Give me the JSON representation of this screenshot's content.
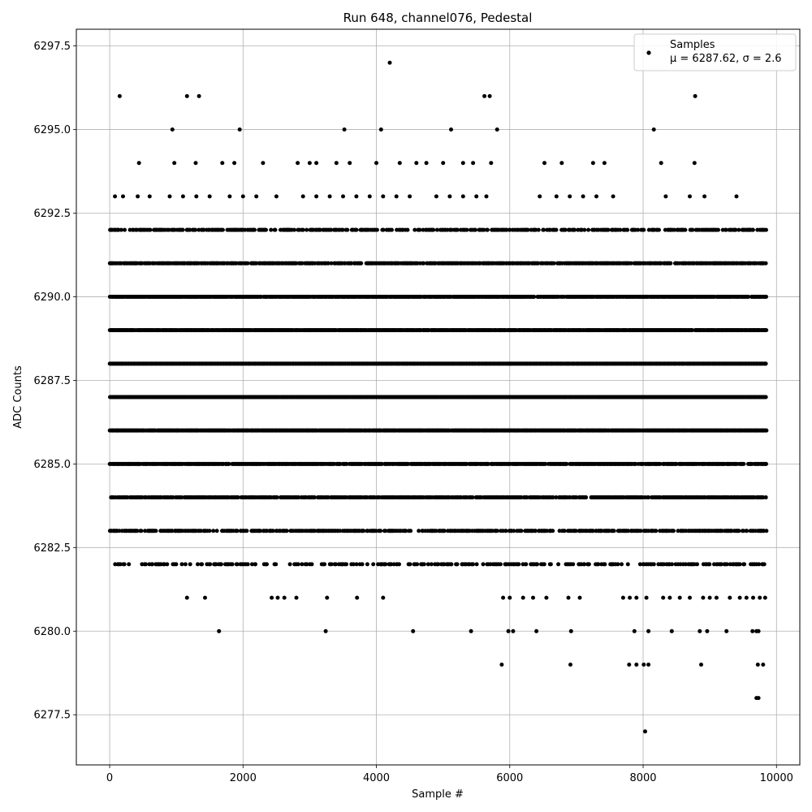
{
  "chart_data": {
    "type": "scatter",
    "title": "Run 648, channel076, Pedestal",
    "xlabel": "Sample #",
    "ylabel": "ADC Counts",
    "xlim": [
      -500,
      10350
    ],
    "ylim": [
      6276,
      6298
    ],
    "x_ticks": [
      0,
      2000,
      4000,
      6000,
      8000,
      10000
    ],
    "y_ticks": [
      6277.5,
      6280.0,
      6282.5,
      6285.0,
      6287.5,
      6290.0,
      6292.5,
      6295.0,
      6297.5
    ],
    "grid": true,
    "legend_position": "top-right",
    "marker_color": "#000000",
    "n_samples": 9850,
    "series": [
      {
        "name": "Samples",
        "label_line2": "μ = 6287.62, σ = 2.6",
        "band_levels": [
          6282,
          6283,
          6284,
          6285,
          6286,
          6287,
          6288,
          6289,
          6290,
          6291,
          6292
        ],
        "band_occupancy": [
          0.3,
          0.55,
          0.7,
          0.85,
          0.95,
          1.0,
          1.0,
          0.95,
          0.85,
          0.7,
          0.5
        ],
        "points": [
          [
            150,
            6296
          ],
          [
            1160,
            6296
          ],
          [
            1340,
            6296
          ],
          [
            4200,
            6297
          ],
          [
            5620,
            6296
          ],
          [
            5700,
            6296
          ],
          [
            8780,
            6296
          ],
          [
            940,
            6295
          ],
          [
            1950,
            6295
          ],
          [
            3520,
            6295
          ],
          [
            4070,
            6295
          ],
          [
            5120,
            6295
          ],
          [
            5810,
            6295
          ],
          [
            8160,
            6295
          ],
          [
            440,
            6294
          ],
          [
            970,
            6294
          ],
          [
            1290,
            6294
          ],
          [
            1690,
            6294
          ],
          [
            1870,
            6294
          ],
          [
            2300,
            6294
          ],
          [
            2820,
            6294
          ],
          [
            3000,
            6294
          ],
          [
            3100,
            6294
          ],
          [
            3400,
            6294
          ],
          [
            3600,
            6294
          ],
          [
            4000,
            6294
          ],
          [
            4350,
            6294
          ],
          [
            4600,
            6294
          ],
          [
            4750,
            6294
          ],
          [
            5000,
            6294
          ],
          [
            5300,
            6294
          ],
          [
            5450,
            6294
          ],
          [
            5720,
            6294
          ],
          [
            6520,
            6294
          ],
          [
            6780,
            6294
          ],
          [
            7250,
            6294
          ],
          [
            7420,
            6294
          ],
          [
            8270,
            6294
          ],
          [
            8770,
            6294
          ],
          [
            80,
            6293
          ],
          [
            200,
            6293
          ],
          [
            420,
            6293
          ],
          [
            600,
            6293
          ],
          [
            900,
            6293
          ],
          [
            1100,
            6293
          ],
          [
            1300,
            6293
          ],
          [
            1500,
            6293
          ],
          [
            1800,
            6293
          ],
          [
            2000,
            6293
          ],
          [
            2200,
            6293
          ],
          [
            2500,
            6293
          ],
          [
            2900,
            6293
          ],
          [
            3100,
            6293
          ],
          [
            3300,
            6293
          ],
          [
            3500,
            6293
          ],
          [
            3700,
            6293
          ],
          [
            3900,
            6293
          ],
          [
            4100,
            6293
          ],
          [
            4300,
            6293
          ],
          [
            4500,
            6293
          ],
          [
            4900,
            6293
          ],
          [
            5100,
            6293
          ],
          [
            5300,
            6293
          ],
          [
            5500,
            6293
          ],
          [
            5650,
            6293
          ],
          [
            6450,
            6293
          ],
          [
            6700,
            6293
          ],
          [
            6900,
            6293
          ],
          [
            7100,
            6293
          ],
          [
            7300,
            6293
          ],
          [
            7550,
            6293
          ],
          [
            8340,
            6293
          ],
          [
            8700,
            6293
          ],
          [
            8920,
            6293
          ],
          [
            9400,
            6293
          ],
          [
            1160,
            6281
          ],
          [
            1430,
            6281
          ],
          [
            2430,
            6281
          ],
          [
            2520,
            6281
          ],
          [
            2620,
            6281
          ],
          [
            2800,
            6281
          ],
          [
            3260,
            6281
          ],
          [
            3710,
            6281
          ],
          [
            4100,
            6281
          ],
          [
            5900,
            6281
          ],
          [
            6000,
            6281
          ],
          [
            6200,
            6281
          ],
          [
            6350,
            6281
          ],
          [
            6550,
            6281
          ],
          [
            6880,
            6281
          ],
          [
            7050,
            6281
          ],
          [
            7700,
            6281
          ],
          [
            7800,
            6281
          ],
          [
            7900,
            6281
          ],
          [
            8050,
            6281
          ],
          [
            8300,
            6281
          ],
          [
            8400,
            6281
          ],
          [
            8550,
            6281
          ],
          [
            8700,
            6281
          ],
          [
            8900,
            6281
          ],
          [
            9000,
            6281
          ],
          [
            9100,
            6281
          ],
          [
            9300,
            6281
          ],
          [
            9450,
            6281
          ],
          [
            9550,
            6281
          ],
          [
            9650,
            6281
          ],
          [
            9750,
            6281
          ],
          [
            9830,
            6281
          ],
          [
            1640,
            6280
          ],
          [
            3240,
            6280
          ],
          [
            4550,
            6280
          ],
          [
            5420,
            6280
          ],
          [
            5980,
            6280
          ],
          [
            6050,
            6280
          ],
          [
            6400,
            6280
          ],
          [
            6920,
            6280
          ],
          [
            7870,
            6280
          ],
          [
            8080,
            6280
          ],
          [
            8430,
            6280
          ],
          [
            8850,
            6280
          ],
          [
            8960,
            6280
          ],
          [
            9250,
            6280
          ],
          [
            9640,
            6280
          ],
          [
            9700,
            6280
          ],
          [
            9730,
            6280
          ],
          [
            5880,
            6279
          ],
          [
            6910,
            6279
          ],
          [
            7790,
            6279
          ],
          [
            7900,
            6279
          ],
          [
            8010,
            6279
          ],
          [
            8080,
            6279
          ],
          [
            8870,
            6279
          ],
          [
            9720,
            6279
          ],
          [
            9800,
            6279
          ],
          [
            9700,
            6278
          ],
          [
            9730,
            6278
          ],
          [
            8030,
            6277
          ]
        ]
      }
    ]
  }
}
